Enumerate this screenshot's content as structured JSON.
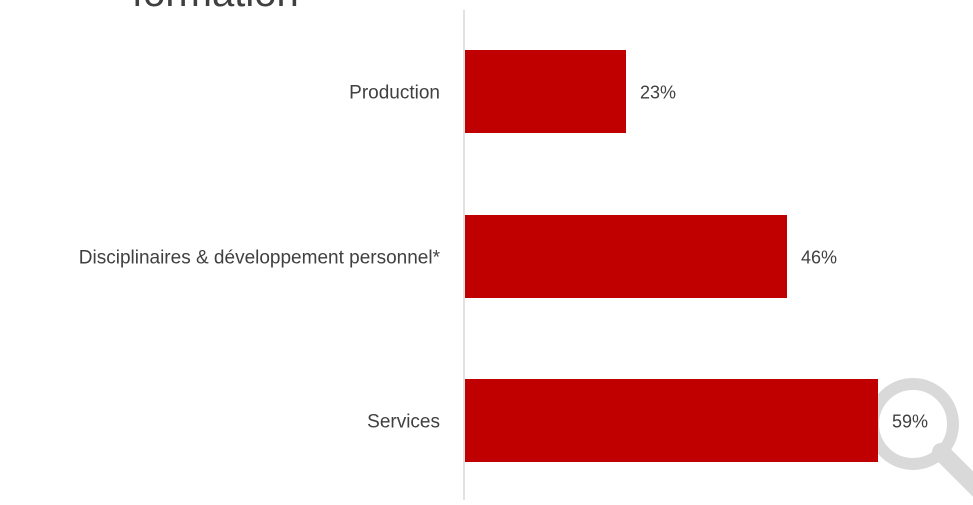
{
  "chart_data": {
    "type": "bar",
    "orientation": "horizontal",
    "title": "formation",
    "categories": [
      "Production",
      "Disciplinaires & développement personnel*",
      "Services"
    ],
    "values": [
      23,
      46,
      59
    ],
    "value_labels": [
      "23%",
      "46%",
      "59%"
    ],
    "xlim": [
      0,
      65
    ],
    "grid": false,
    "legend": "none",
    "bar_color": "#C00000",
    "axis_color": "#D9D9D9"
  },
  "decorations": {
    "magnifier_icon": "magnifier-icon",
    "corner_triangle_icon": "corner-triangle-icon",
    "decor_color": "#D9D9D9"
  }
}
